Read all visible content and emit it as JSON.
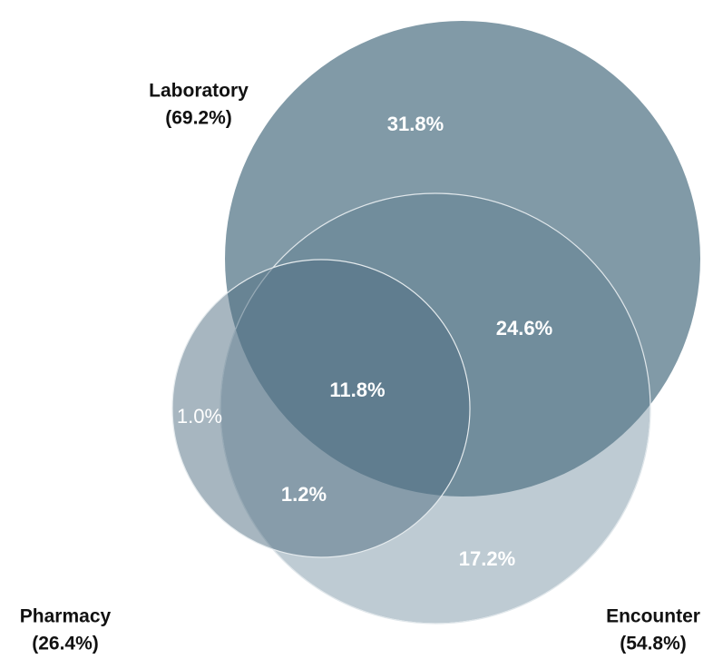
{
  "sets": [
    {
      "name": "Laboratory",
      "share": "(69.2%)"
    },
    {
      "name": "Encounter",
      "share": "(54.8%)"
    },
    {
      "name": "Pharmacy",
      "share": "(26.4%)"
    }
  ],
  "regions": [
    {
      "label": "31.8%"
    },
    {
      "label": "24.6%"
    },
    {
      "label": "11.8%"
    },
    {
      "label": "1.0%"
    },
    {
      "label": "1.2%"
    },
    {
      "label": "17.2%"
    }
  ]
}
